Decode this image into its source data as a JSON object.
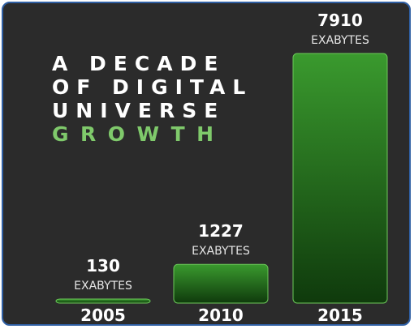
{
  "chart_data": {
    "type": "bar",
    "title": [
      "A DECADE",
      "OF DIGITAL",
      "UNIVERSE",
      "GROWTH"
    ],
    "categories": [
      "2005",
      "2010",
      "2015"
    ],
    "values": [
      130,
      1227,
      7910
    ],
    "unit": "EXABYTES",
    "ylim": [
      0,
      7910
    ],
    "grid": false,
    "legend": false,
    "colors": {
      "background": "#2b2b2b",
      "bar_top": "#3a9a2e",
      "bar_bottom": "#0f3a0c",
      "bar_edge": "#6cc85a",
      "title_accent": "#7fc96b"
    }
  }
}
